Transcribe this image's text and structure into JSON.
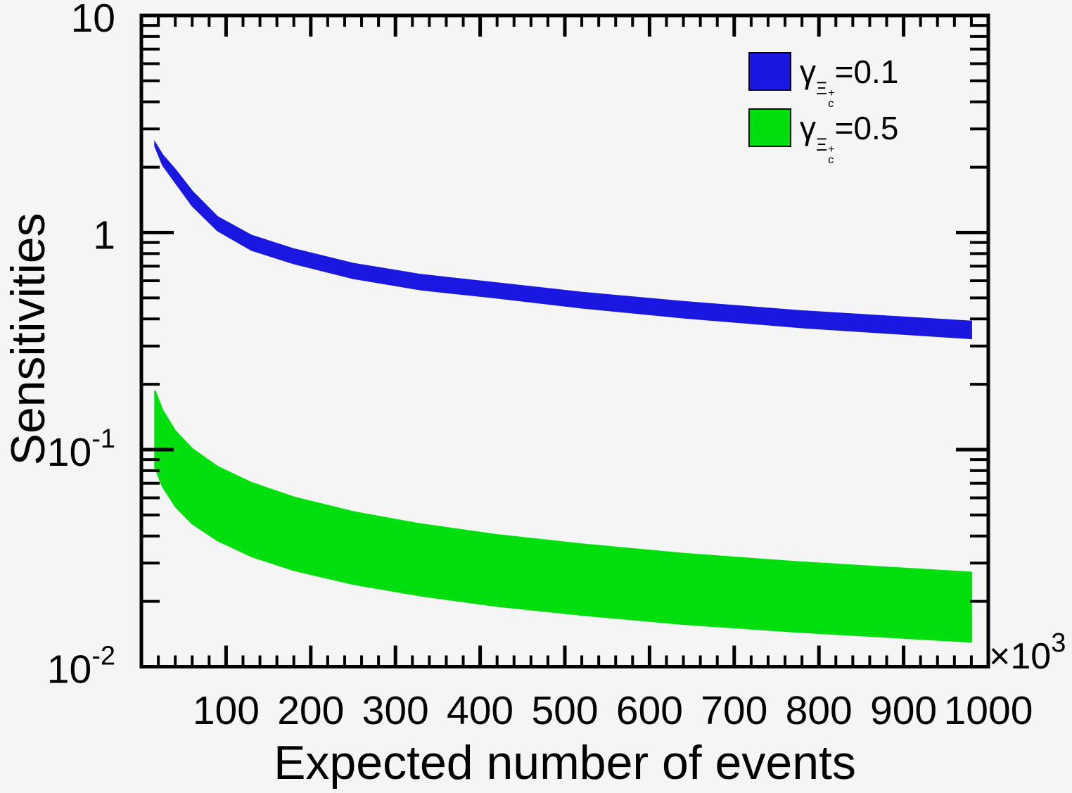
{
  "chart_data": {
    "type": "area",
    "title": "",
    "xlabel": "Expected number of events",
    "ylabel": "Sensitivities",
    "grid": false,
    "legend_position": "top-right",
    "x_axis": {
      "min": 0,
      "max": 1000,
      "scale": "linear",
      "unit_label": {
        "times": "×10",
        "exp": "3"
      },
      "major_ticks": [
        100,
        200,
        300,
        400,
        500,
        600,
        700,
        800,
        900,
        1000
      ],
      "major_tick_labels": [
        "100",
        "200",
        "300",
        "400",
        "500",
        "600",
        "700",
        "800",
        "900",
        "1000"
      ],
      "minor_tick_step": 20
    },
    "y_axis": {
      "min": 0.01,
      "max": 10,
      "scale": "log",
      "tick_labels": [
        {
          "value": 10,
          "base": "10",
          "exp": ""
        },
        {
          "value": 1,
          "base": "1",
          "exp": ""
        },
        {
          "value": 0.1,
          "base": "10",
          "exp": "-1"
        },
        {
          "value": 0.01,
          "base": "10",
          "exp": "-2"
        }
      ]
    },
    "x_thousands": [
      16,
      25,
      40,
      60,
      90,
      130,
      180,
      250,
      330,
      420,
      520,
      640,
      780,
      980
    ],
    "series": [
      {
        "name": "gamma-xic-0p1",
        "label_plain": "γ_Ξc+ = 0.1",
        "color": "#1a18e0",
        "upper": [
          2.6,
          2.28,
          1.95,
          1.55,
          1.18,
          0.97,
          0.84,
          0.72,
          0.64,
          0.585,
          0.53,
          0.48,
          0.435,
          0.39
        ],
        "lower": [
          2.5,
          2.05,
          1.7,
          1.33,
          1.02,
          0.83,
          0.72,
          0.615,
          0.545,
          0.5,
          0.45,
          0.405,
          0.365,
          0.325
        ]
      },
      {
        "name": "gamma-xic-0p5",
        "label_plain": "γ_Ξc+ = 0.5",
        "color": "#00df0e",
        "upper": [
          0.187,
          0.152,
          0.122,
          0.101,
          0.0835,
          0.0704,
          0.0604,
          0.0517,
          0.0454,
          0.0405,
          0.0367,
          0.0332,
          0.0303,
          0.0272
        ],
        "lower": [
          0.083,
          0.0676,
          0.0547,
          0.0456,
          0.0381,
          0.0322,
          0.0278,
          0.024,
          0.0212,
          0.019,
          0.0173,
          0.0157,
          0.0144,
          0.013
        ]
      }
    ]
  },
  "legend": {
    "items": [
      {
        "gamma": "γ",
        "sub_xi": "Ξ",
        "sub_plus": "+",
        "sub_c": "c",
        "value": "=0.1",
        "swatch_color": "#1a18e0"
      },
      {
        "gamma": "γ",
        "sub_xi": "Ξ",
        "sub_plus": "+",
        "sub_c": "c",
        "value": "=0.5",
        "swatch_color": "#00df0e"
      }
    ]
  },
  "colors": {
    "background": "#f5f5f6",
    "axis": "#000000",
    "blue_band": "#1a18e0",
    "green_band": "#00df0e"
  }
}
